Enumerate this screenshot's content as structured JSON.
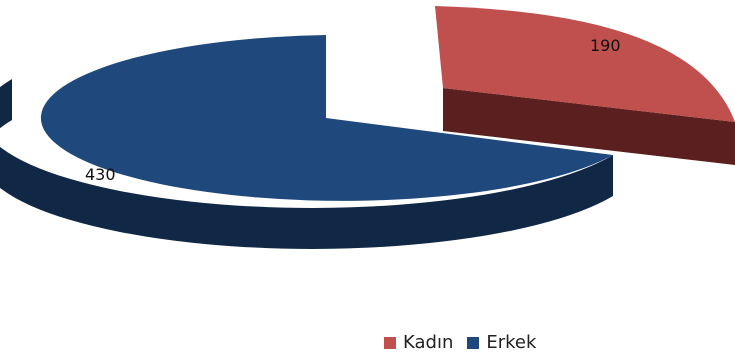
{
  "chart_data": {
    "type": "pie",
    "style": "3d-exploded",
    "title": "",
    "slices": [
      {
        "label": "Kadın",
        "value": 190,
        "color": "#C0504D",
        "side_color": "#5A1F1E",
        "exploded": true
      },
      {
        "label": "Erkek",
        "value": 430,
        "color": "#1F497D",
        "side_color": "#102845",
        "exploded": false
      }
    ],
    "legend": {
      "position": "bottom-right",
      "entries": [
        "Kadın",
        "Erkek"
      ]
    },
    "show_data_labels": true
  }
}
